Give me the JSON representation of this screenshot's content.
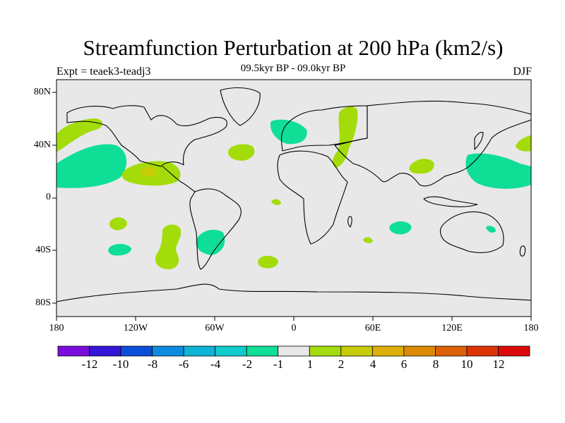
{
  "header": {
    "title": "Streamfunction Perturbation at 200 hPa (km2/s)",
    "subtitle": "09.5kyr BP - 09.0kyr BP",
    "left_label": "Expt = teaek3-teadj3",
    "right_label": "DJF"
  },
  "axes": {
    "y_ticks": [
      "80N",
      "40N",
      "0",
      "40S",
      "80S"
    ],
    "x_ticks": [
      "180",
      "120W",
      "60W",
      "0",
      "60E",
      "120E",
      "180"
    ]
  },
  "colorbar": {
    "colors": [
      "#7a0ddc",
      "#3316d8",
      "#0b4fd6",
      "#0d8bdf",
      "#0eb3d6",
      "#0ecccb",
      "#0ede96",
      "#e8e8e8",
      "#a3dc0a",
      "#c8cc07",
      "#dcb006",
      "#dc8a06",
      "#dc6006",
      "#dc3406",
      "#dc0a0a"
    ],
    "labels": [
      "-12",
      "-10",
      "-8",
      "-6",
      "-4",
      "-2",
      "-1",
      "1",
      "2",
      "4",
      "6",
      "8",
      "10",
      "12"
    ]
  },
  "colors": {
    "positive_small": "#a3dc0a",
    "negative_small": "#0ede96",
    "positive_mid": "#c8cc07",
    "background": "#e8e8e8"
  }
}
